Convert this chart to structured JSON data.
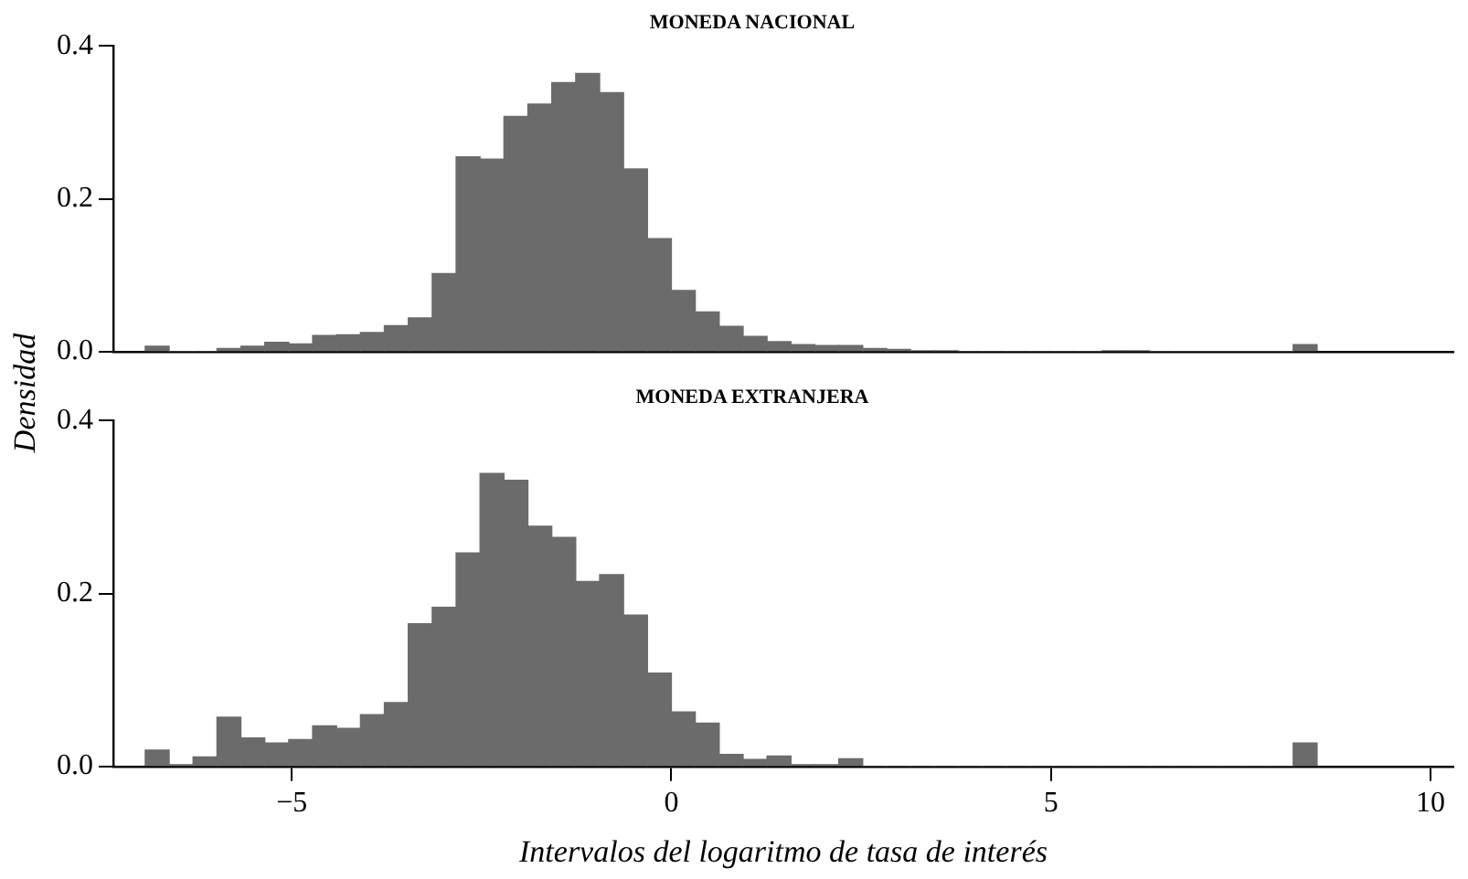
{
  "chart_data": [
    {
      "type": "histogram",
      "title": "MONEDA NACIONAL",
      "ylabel": "Densidad",
      "color": "#6b6b6b",
      "tick_labels": "y",
      "grid": false,
      "legend": false,
      "bins": [
        -6.93,
        -6.615,
        -6.3,
        -5.985,
        -5.67,
        -5.355,
        -5.04,
        -4.725,
        -4.41,
        -4.095,
        -3.78,
        -3.465,
        -3.15,
        -2.835,
        -2.52,
        -2.205,
        -1.89,
        -1.575,
        -1.26,
        -0.945,
        -0.63,
        -0.315,
        0,
        0.315,
        0.63,
        0.945,
        1.26,
        1.575,
        1.89,
        2.205,
        2.52,
        2.835,
        3.15,
        3.465,
        3.78,
        4.095,
        4.41,
        4.725,
        5.04,
        5.355,
        5.67,
        5.985,
        6.3,
        6.615,
        6.93,
        7.245,
        7.56,
        7.875,
        8.19,
        8.505
      ],
      "values": [
        0.007,
        0,
        0,
        0.004,
        0.007,
        0.012,
        0.01,
        0.021,
        0.022,
        0.025,
        0.034,
        0.044,
        0.102,
        0.255,
        0.252,
        0.308,
        0.324,
        0.352,
        0.364,
        0.339,
        0.239,
        0.148,
        0.08,
        0.052,
        0.033,
        0.02,
        0.013,
        0.009,
        0.008,
        0.008,
        0.004,
        0.003,
        0.001,
        0.001,
        0,
        0,
        0,
        0,
        0,
        0,
        0.001,
        0.001,
        0,
        0,
        0,
        0,
        0,
        0,
        0.009
      ],
      "xlim": [
        -7.35,
        10.3
      ],
      "ylim": [
        0,
        0.4
      ],
      "yticks": [
        {
          "value": 0,
          "label": "0.0"
        },
        {
          "value": 0.2,
          "label": "0.2"
        },
        {
          "value": 0.4,
          "label": "0.4"
        }
      ]
    },
    {
      "type": "histogram",
      "title": "MONEDA EXTRANJERA",
      "xlabel": "Intervalos del logaritmo de tasa de interés",
      "color": "#6b6b6b",
      "grid": false,
      "legend": false,
      "bins": [
        -6.93,
        -6.615,
        -6.3,
        -5.985,
        -5.67,
        -5.355,
        -5.04,
        -4.725,
        -4.41,
        -4.095,
        -3.78,
        -3.465,
        -3.15,
        -2.835,
        -2.52,
        -2.205,
        -1.89,
        -1.575,
        -1.26,
        -0.945,
        -0.63,
        -0.315,
        0,
        0.315,
        0.63,
        0.945,
        1.26,
        1.575,
        1.89,
        2.205,
        2.52,
        2.835,
        3.15,
        3.465,
        3.78,
        4.095,
        4.41,
        4.725,
        5.04,
        5.355,
        5.67,
        5.985,
        6.3,
        6.615,
        6.93,
        7.245,
        7.56,
        7.875,
        8.19,
        8.505
      ],
      "values": [
        0.019,
        0.002,
        0.011,
        0.057,
        0.033,
        0.027,
        0.031,
        0.047,
        0.044,
        0.06,
        0.074,
        0.165,
        0.184,
        0.247,
        0.339,
        0.331,
        0.278,
        0.265,
        0.214,
        0.222,
        0.175,
        0.108,
        0.063,
        0.05,
        0.014,
        0.008,
        0.012,
        0.002,
        0.002,
        0.009,
        0,
        0,
        0,
        0,
        0,
        0,
        0,
        0,
        0,
        0,
        0,
        0,
        0,
        0,
        0,
        0,
        0,
        0,
        0.027
      ],
      "xlim": [
        -7.35,
        10.3
      ],
      "xticks": [
        {
          "value": -5,
          "label": "−5"
        },
        0,
        5,
        10
      ],
      "ylim": [
        0,
        0.4
      ],
      "yticks": [
        {
          "value": 0,
          "label": "0.0"
        },
        {
          "value": 0.2,
          "label": "0.2"
        },
        {
          "value": 0.4,
          "label": "0.4"
        }
      ]
    }
  ]
}
